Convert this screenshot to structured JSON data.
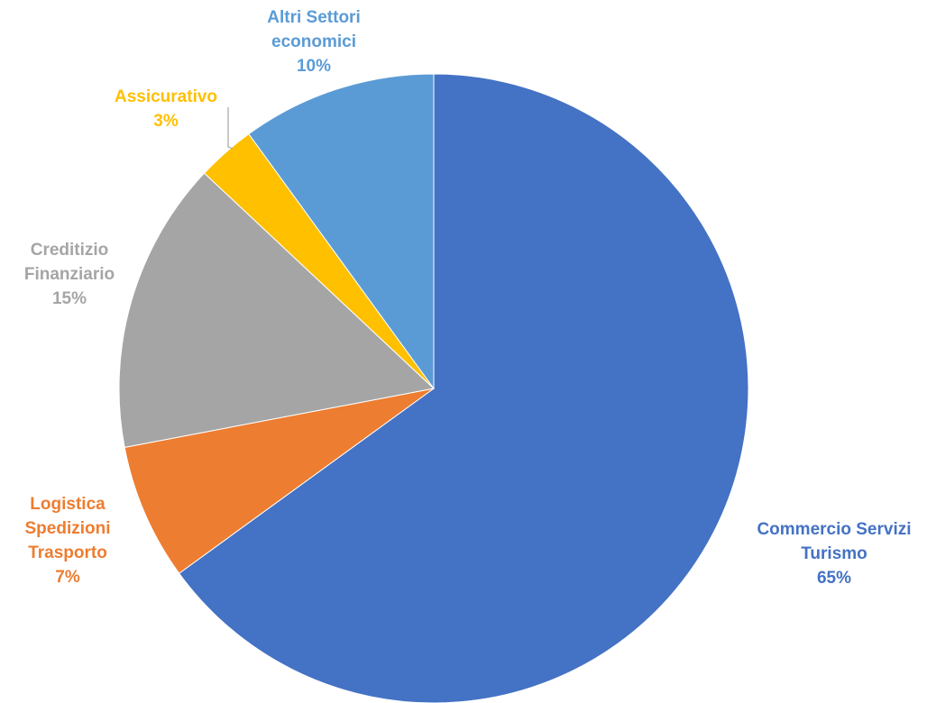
{
  "chart_data": {
    "type": "pie",
    "title": "",
    "start_angle_deg": 0,
    "direction": "clockwise",
    "slices": [
      {
        "label_lines": [
          "Commercio Servizi",
          "Turismo"
        ],
        "value": 65,
        "value_label": "65%",
        "color": "#4472C4"
      },
      {
        "label_lines": [
          "Logistica",
          "Spedizioni",
          "Trasporto"
        ],
        "value": 7,
        "value_label": "7%",
        "color": "#ED7D31"
      },
      {
        "label_lines": [
          "Creditizio",
          "Finanziario"
        ],
        "value": 15,
        "value_label": "15%",
        "color": "#A5A5A5"
      },
      {
        "label_lines": [
          "Assicurativo"
        ],
        "value": 3,
        "value_label": "3%",
        "color": "#FFC000"
      },
      {
        "label_lines": [
          "Altri Settori",
          "economici"
        ],
        "value": 10,
        "value_label": "10%",
        "color": "#5B9BD5"
      }
    ]
  }
}
